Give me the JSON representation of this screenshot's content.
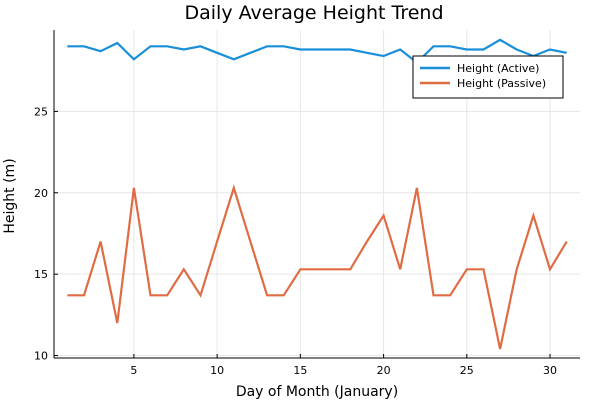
{
  "chart_data": {
    "type": "line",
    "title": "Daily Average Height Trend",
    "xlabel": "Day of Month (January)",
    "ylabel": "Height (m)",
    "x": [
      1,
      2,
      3,
      4,
      5,
      6,
      7,
      8,
      9,
      10,
      11,
      12,
      13,
      14,
      15,
      16,
      17,
      18,
      19,
      20,
      21,
      22,
      23,
      24,
      25,
      26,
      27,
      28,
      29,
      30,
      31
    ],
    "xlim": [
      0.2,
      31.8
    ],
    "ylim": [
      9.85,
      30.0
    ],
    "xticks": [
      5,
      10,
      15,
      20,
      25,
      30
    ],
    "yticks": [
      10,
      15,
      20,
      25
    ],
    "grid": true,
    "legend_position": "top-right",
    "series": [
      {
        "name": "Height (Active)",
        "color": "#1a8fd9",
        "values": [
          29.0,
          29.0,
          28.7,
          29.2,
          28.2,
          29.0,
          29.0,
          28.8,
          29.0,
          28.6,
          28.2,
          28.6,
          29.0,
          29.0,
          28.8,
          28.8,
          28.8,
          28.8,
          28.6,
          28.4,
          28.8,
          28.0,
          29.0,
          29.0,
          28.8,
          28.8,
          29.4,
          28.8,
          28.4,
          28.8,
          28.6
        ]
      },
      {
        "name": "Height (Passive)",
        "color": "#e06c44",
        "values": [
          13.7,
          13.7,
          17.0,
          12.0,
          20.3,
          13.7,
          13.7,
          15.3,
          13.7,
          17.0,
          20.3,
          17.0,
          13.7,
          13.7,
          15.3,
          15.3,
          15.3,
          15.3,
          17.0,
          18.6,
          15.3,
          20.3,
          13.7,
          13.7,
          15.3,
          15.3,
          10.4,
          15.3,
          18.6,
          15.3,
          17.0
        ]
      }
    ]
  }
}
